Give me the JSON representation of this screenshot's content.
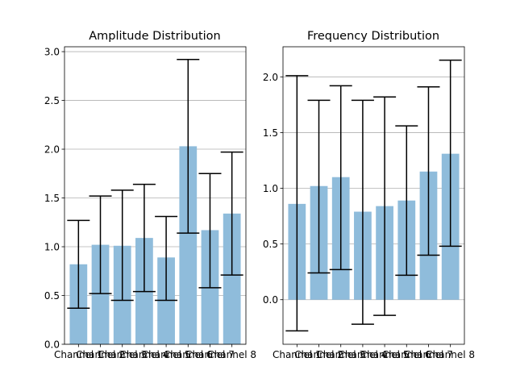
{
  "chart_data": [
    {
      "type": "bar",
      "title": "Amplitude Distribution",
      "xlabel": "",
      "ylabel": "",
      "ylim": [
        0,
        3.05
      ],
      "yticks": [
        0.0,
        0.5,
        1.0,
        1.5,
        2.0,
        2.5,
        3.0
      ],
      "ytick_labels": [
        "0.0",
        "0.5",
        "1.0",
        "1.5",
        "2.0",
        "2.5",
        "3.0"
      ],
      "grid": "y",
      "categories": [
        "Channel 1",
        "Channel 2",
        "Channel 3",
        "Channel 4",
        "Channel 5",
        "Channel 6",
        "Channel 7",
        "Channel 8"
      ],
      "values": [
        0.82,
        1.02,
        1.01,
        1.09,
        0.89,
        2.03,
        1.17,
        1.34
      ],
      "error_low": [
        0.37,
        0.52,
        0.45,
        0.54,
        0.45,
        1.14,
        0.58,
        0.71
      ],
      "error_high": [
        1.27,
        1.52,
        1.58,
        1.64,
        1.31,
        2.92,
        1.75,
        1.97
      ],
      "bar_color": "#8fbcdb",
      "error_color": "#000000"
    },
    {
      "type": "bar",
      "title": "Frequency Distribution",
      "xlabel": "",
      "ylabel": "",
      "ylim": [
        -0.4,
        2.27
      ],
      "yticks": [
        0.0,
        0.5,
        1.0,
        1.5,
        2.0
      ],
      "ytick_labels": [
        "0.0",
        "0.5",
        "1.0",
        "1.5",
        "2.0"
      ],
      "grid": "y",
      "categories": [
        "Channel 1",
        "Channel 2",
        "Channel 3",
        "Channel 4",
        "Channel 5",
        "Channel 6",
        "Channel 7",
        "Channel 8"
      ],
      "values": [
        0.86,
        1.02,
        1.1,
        0.79,
        0.84,
        0.89,
        1.15,
        1.31
      ],
      "error_low": [
        -0.28,
        0.24,
        0.27,
        -0.22,
        -0.14,
        0.22,
        0.4,
        0.48
      ],
      "error_high": [
        2.01,
        1.79,
        1.92,
        1.79,
        1.82,
        1.56,
        1.91,
        2.15
      ],
      "bar_color": "#8fbcdb",
      "error_color": "#000000"
    }
  ]
}
